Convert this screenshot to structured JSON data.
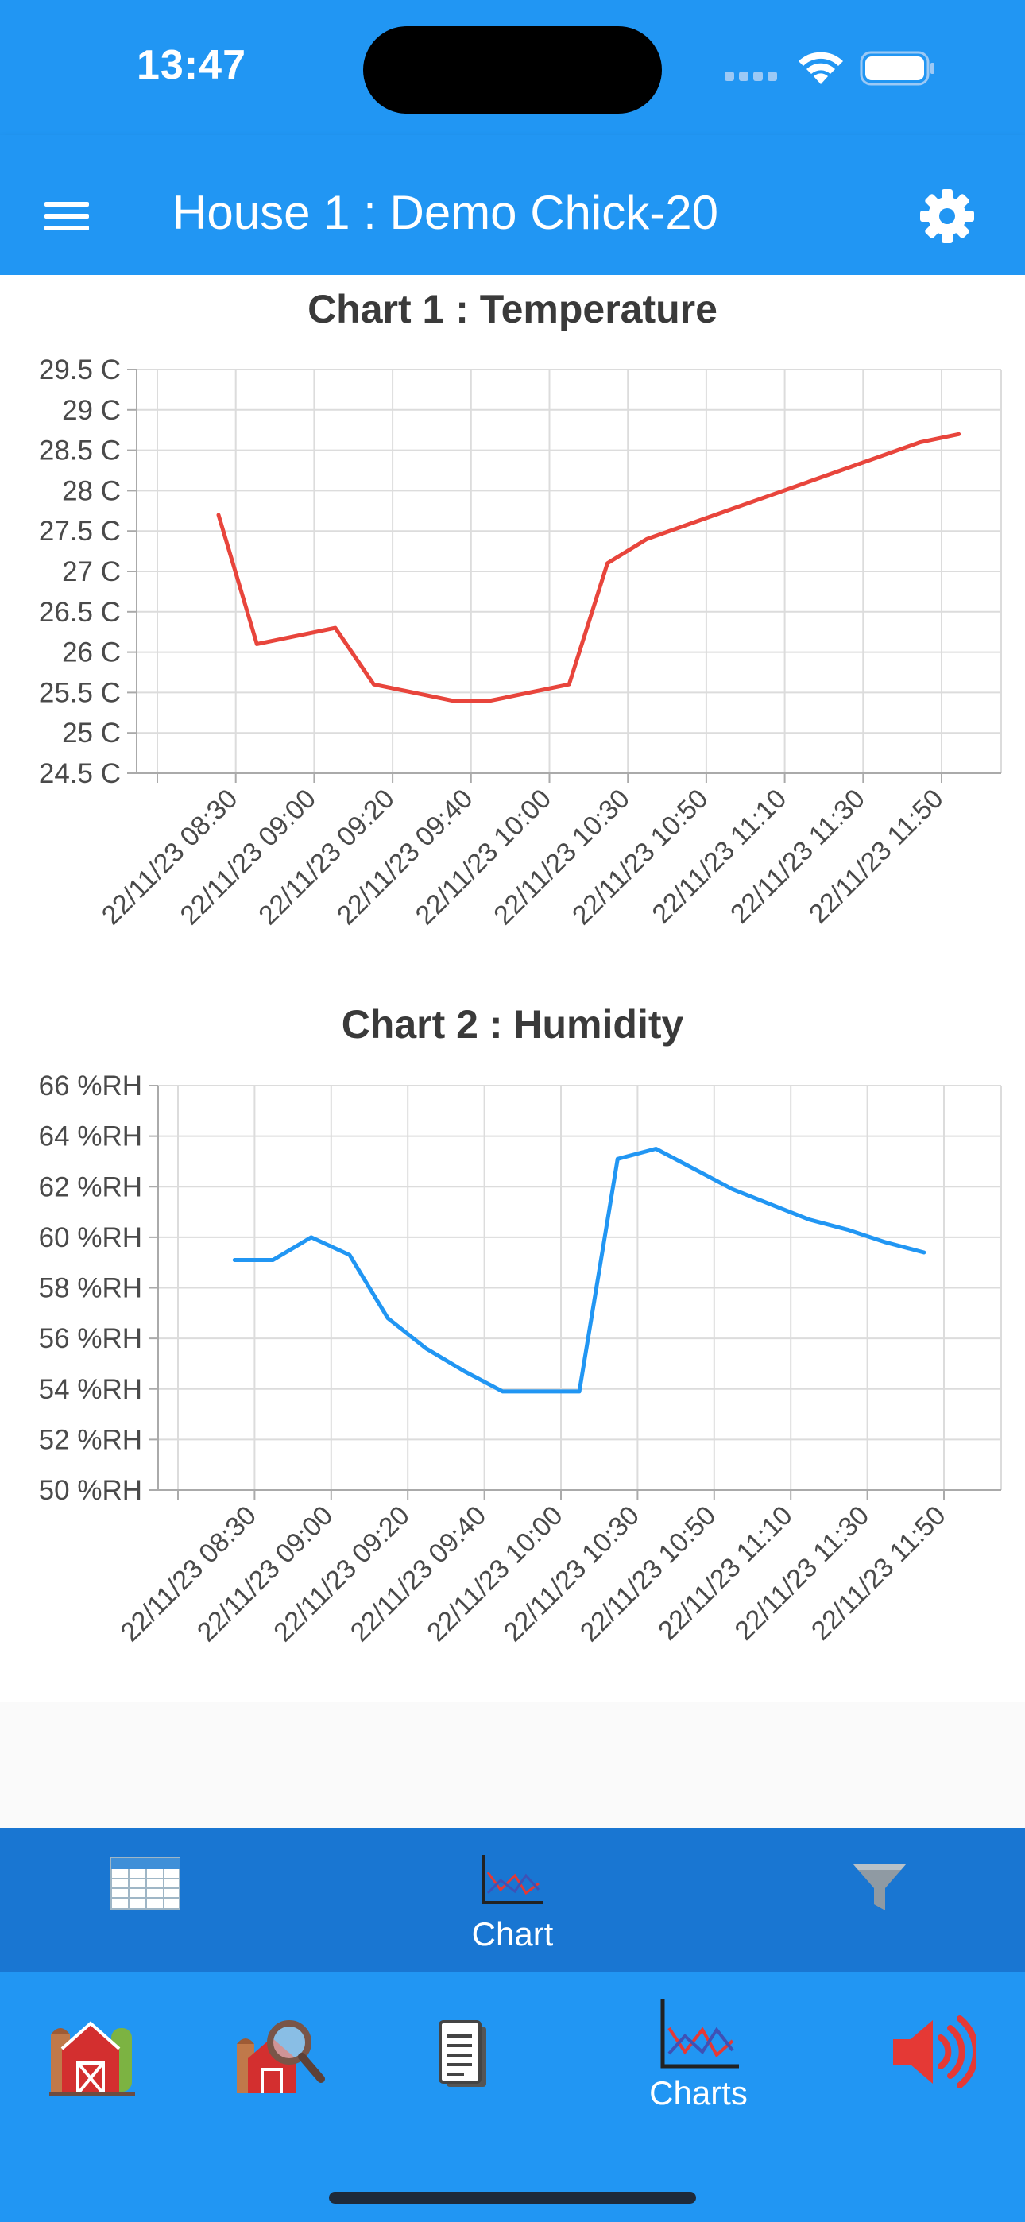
{
  "status_bar": {
    "time": "13:47"
  },
  "app_bar": {
    "title": "House 1 : Demo Chick-20",
    "menu_icon": "menu-icon",
    "settings_icon": "gear-icon"
  },
  "chart_data": [
    {
      "type": "line",
      "title": "Chart 1 : Temperature",
      "xlabel": "",
      "ylabel": "",
      "x_tick_labels": [
        "22/11/23 08:30",
        "22/11/23 09:00",
        "22/11/23 09:20",
        "22/11/23 09:40",
        "22/11/23 10:00",
        "22/11/23 10:30",
        "22/11/23 10:50",
        "22/11/23 11:10",
        "22/11/23 11:30",
        "22/11/23 11:50"
      ],
      "y_tick_labels": [
        "29.5 C",
        "29 C",
        "28.5 C",
        "28 C",
        "27.5 C",
        "27 C",
        "26.5 C",
        "26 C",
        "25.5 C",
        "25 C",
        "24.5 C"
      ],
      "ylim": [
        24.5,
        29.5
      ],
      "series_color": "#e8453c",
      "series": [
        {
          "values": [
            {
              "x": 0.78,
              "y": 27.7
            },
            {
              "x": 1.27,
              "y": 26.1
            },
            {
              "x": 2.27,
              "y": 26.3
            },
            {
              "x": 2.76,
              "y": 25.6
            },
            {
              "x": 3.76,
              "y": 25.4
            },
            {
              "x": 4.25,
              "y": 25.4
            },
            {
              "x": 5.25,
              "y": 25.6
            },
            {
              "x": 5.74,
              "y": 27.1
            },
            {
              "x": 6.24,
              "y": 27.4
            },
            {
              "x": 9.73,
              "y": 28.6
            },
            {
              "x": 10.22,
              "y": 28.7
            }
          ]
        }
      ],
      "grid": true,
      "legend": "none"
    },
    {
      "type": "line",
      "title": "Chart 2 : Humidity",
      "xlabel": "",
      "ylabel": "",
      "x_tick_labels": [
        "22/11/23 08:30",
        "22/11/23 09:00",
        "22/11/23 09:20",
        "22/11/23 09:40",
        "22/11/23 10:00",
        "22/11/23 10:30",
        "22/11/23 10:50",
        "22/11/23 11:10",
        "22/11/23 11:30",
        "22/11/23 11:50"
      ],
      "y_tick_labels": [
        "66 %RH",
        "64 %RH",
        "62 %RH",
        "60 %RH",
        "58 %RH",
        "56 %RH",
        "54 %RH",
        "52 %RH",
        "50 %RH"
      ],
      "ylim": [
        50,
        66
      ],
      "series_color": "#2196f3",
      "series": [
        {
          "values": [
            {
              "x": 0.74,
              "y": 59.1
            },
            {
              "x": 1.24,
              "y": 59.1
            },
            {
              "x": 1.74,
              "y": 60.0
            },
            {
              "x": 2.24,
              "y": 59.3
            },
            {
              "x": 2.74,
              "y": 56.8
            },
            {
              "x": 3.24,
              "y": 55.6
            },
            {
              "x": 3.74,
              "y": 54.7
            },
            {
              "x": 4.24,
              "y": 53.9
            },
            {
              "x": 5.24,
              "y": 53.9
            },
            {
              "x": 5.74,
              "y": 63.1
            },
            {
              "x": 6.24,
              "y": 63.5
            },
            {
              "x": 7.24,
              "y": 61.9
            },
            {
              "x": 8.24,
              "y": 60.7
            },
            {
              "x": 8.74,
              "y": 60.3
            },
            {
              "x": 9.24,
              "y": 59.8
            },
            {
              "x": 9.74,
              "y": 59.4
            }
          ]
        }
      ],
      "grid": true,
      "legend": "none"
    }
  ],
  "sub_nav": {
    "items": [
      {
        "icon": "table-icon",
        "label": ""
      },
      {
        "icon": "chart-icon",
        "label": "Chart"
      },
      {
        "icon": "filter-icon",
        "label": ""
      }
    ]
  },
  "bottom_nav": {
    "items": [
      {
        "icon": "barn-icon",
        "label": ""
      },
      {
        "icon": "barn-search-icon",
        "label": ""
      },
      {
        "icon": "document-icon",
        "label": ""
      },
      {
        "icon": "charts-icon",
        "label": "Charts"
      },
      {
        "icon": "speaker-icon",
        "label": ""
      }
    ]
  },
  "colors": {
    "primary": "#2196f3",
    "sub_nav": "#1976d2",
    "temperature": "#e8453c",
    "humidity": "#2196f3"
  }
}
